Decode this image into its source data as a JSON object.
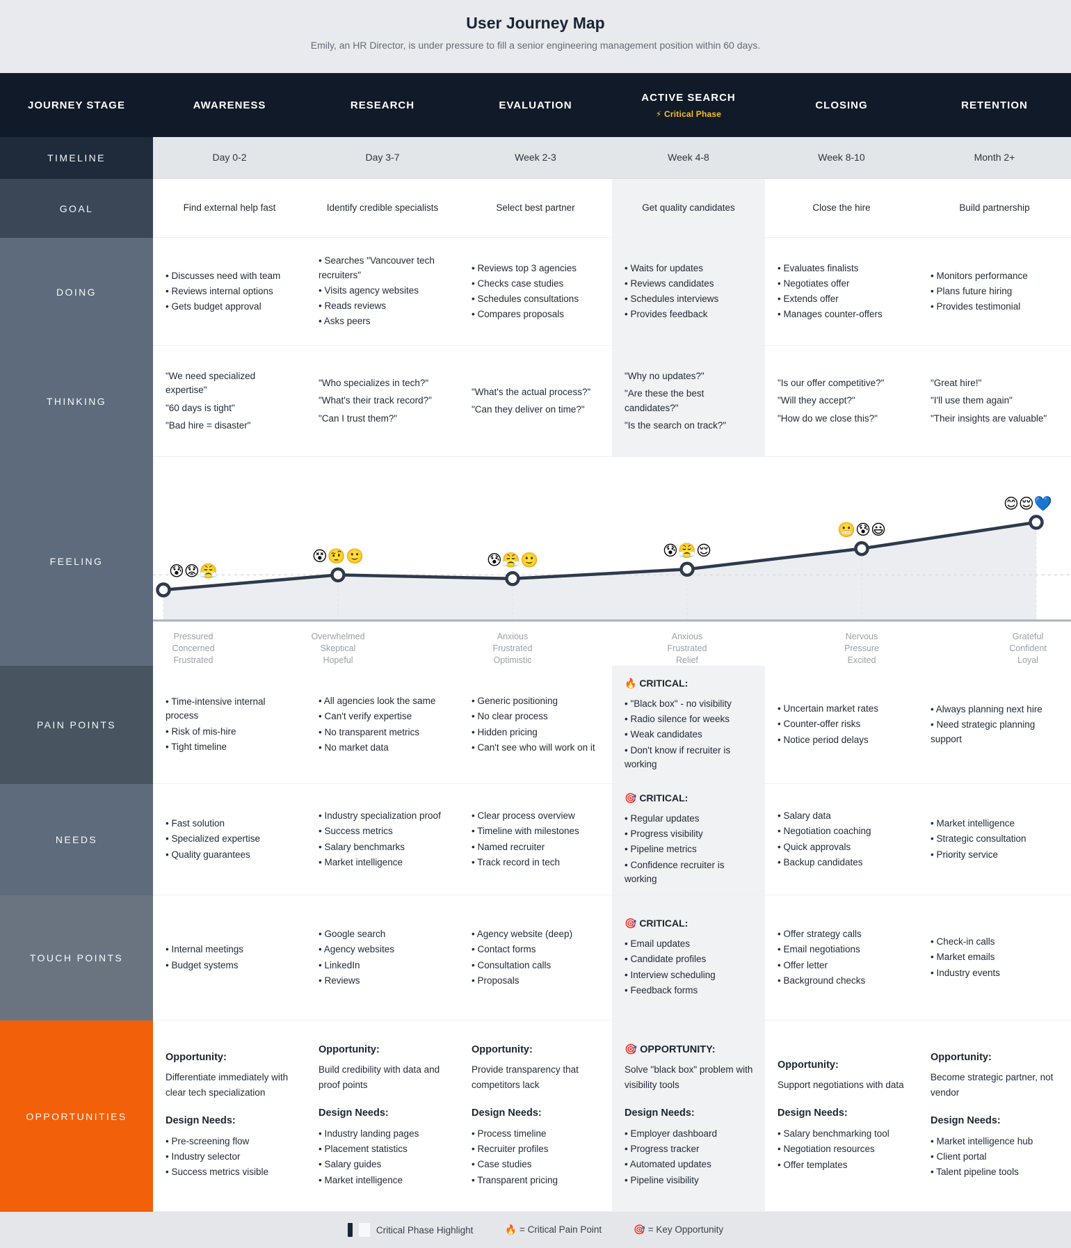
{
  "title": "User Journey Map",
  "subtitle": "Emily, an HR Director, is under pressure to fill a senior engineering management position within 60 days.",
  "row_labels": {
    "stage": "JOURNEY STAGE",
    "timeline": "TIMELINE",
    "goal": "GOAL",
    "doing": "DOING",
    "thinking": "THINKING",
    "feeling": "FEELING",
    "pain": "PAIN POINTS",
    "needs": "NEEDS",
    "touch": "TOUCH POINTS",
    "opportunities": "OPPORTUNITIES"
  },
  "colors": {
    "header_bg": "#111a28",
    "timeline_label_bg": "#1f2b3b",
    "goal_label_bg": "#3b4757",
    "row_label_bg": "#5e6b7c",
    "pain_label_bg": "#48545f",
    "touch_label_bg": "#6a7480",
    "opportunities_bg": "#f2600a",
    "highlight_bg": "#f1f2f4",
    "critical_amber": "#fbbf24",
    "curve_color": "#2e3a4c",
    "page_band_bg": "#e8eaed"
  },
  "stages": [
    {
      "name": "AWARENESS",
      "timeline": "Day 0-2",
      "goal": "Find external help fast",
      "doing": [
        "Discusses need with team",
        "Reviews internal options",
        "Gets budget approval"
      ],
      "thinking": [
        "\"We need specialized expertise\"",
        "\"60 days is tight\"",
        "\"Bad hire = disaster\""
      ],
      "pain": [
        "Time-intensive internal process",
        "Risk of mis-hire",
        "Tight timeline"
      ],
      "needs": [
        "Fast solution",
        "Specialized expertise",
        "Quality guarantees"
      ],
      "touch": [
        "Internal meetings",
        "Budget systems"
      ],
      "opportunity": {
        "label": "Opportunity:",
        "text": "Differentiate immediately with clear tech specialization",
        "design_label": "Design Needs:",
        "design": [
          "Pre-screening flow",
          "Industry selector",
          "Success metrics visible"
        ]
      }
    },
    {
      "name": "RESEARCH",
      "timeline": "Day 3-7",
      "goal": "Identify credible specialists",
      "doing": [
        "Searches \"Vancouver tech recruiters\"",
        "Visits agency websites",
        "Reads reviews",
        "Asks peers"
      ],
      "thinking": [
        "\"Who specializes in tech?\"",
        "\"What's their track record?\"",
        "\"Can I trust them?\""
      ],
      "pain": [
        "All agencies look the same",
        "Can't verify expertise",
        "No transparent metrics",
        "No market data"
      ],
      "needs": [
        "Industry specialization proof",
        "Success metrics",
        "Salary benchmarks",
        "Market intelligence"
      ],
      "touch": [
        "Google search",
        "Agency websites",
        "LinkedIn",
        "Reviews"
      ],
      "opportunity": {
        "label": "Opportunity:",
        "text": "Build credibility with data and proof points",
        "design_label": "Design Needs:",
        "design": [
          "Industry landing pages",
          "Placement statistics",
          "Salary guides",
          "Market intelligence"
        ]
      }
    },
    {
      "name": "EVALUATION",
      "timeline": "Week 2-3",
      "goal": "Select best partner",
      "doing": [
        "Reviews top 3 agencies",
        "Checks case studies",
        "Schedules consultations",
        "Compares proposals"
      ],
      "thinking": [
        "\"What's the actual process?\"",
        "\"Can they deliver on time?\""
      ],
      "pain": [
        "Generic positioning",
        "No clear process",
        "Hidden pricing",
        "Can't see who will work on it"
      ],
      "needs": [
        "Clear process overview",
        "Timeline with milestones",
        "Named recruiter",
        "Track record in tech"
      ],
      "touch": [
        "Agency website (deep)",
        "Contact forms",
        "Consultation calls",
        "Proposals"
      ],
      "opportunity": {
        "label": "Opportunity:",
        "text": "Provide transparency that competitors lack",
        "design_label": "Design Needs:",
        "design": [
          "Process timeline",
          "Recruiter profiles",
          "Case studies",
          "Transparent pricing"
        ]
      }
    },
    {
      "name": "ACTIVE SEARCH",
      "badge": "⚡ Critical Phase",
      "timeline": "Week 4-8",
      "goal": "Get quality candidates",
      "doing": [
        "Waits for updates",
        "Reviews candidates",
        "Schedules interviews",
        "Provides feedback"
      ],
      "thinking": [
        "\"Why no updates?\"",
        "\"Are these the best candidates?\"",
        "\"Is the search on track?\""
      ],
      "pain_critical": "🔥 CRITICAL:",
      "pain": [
        "\"Black box\" - no visibility",
        "Radio silence for weeks",
        "Weak candidates",
        "Don't know if recruiter is working"
      ],
      "needs_critical": "🎯 CRITICAL:",
      "needs": [
        "Regular updates",
        "Progress visibility",
        "Pipeline metrics",
        "Confidence recruiter is working"
      ],
      "touch_critical": "🎯 CRITICAL:",
      "touch": [
        "Email updates",
        "Candidate profiles",
        "Interview scheduling",
        "Feedback forms"
      ],
      "opportunity": {
        "label": "🎯 OPPORTUNITY:",
        "text": "Solve \"black box\" problem with visibility tools",
        "design_label": "Design Needs:",
        "design": [
          "Employer dashboard",
          "Progress tracker",
          "Automated updates",
          "Pipeline visibility"
        ]
      }
    },
    {
      "name": "CLOSING",
      "timeline": "Week 8-10",
      "goal": "Close the hire",
      "doing": [
        "Evaluates finalists",
        "Negotiates offer",
        "Extends offer",
        "Manages counter-offers"
      ],
      "thinking": [
        "\"Is our offer competitive?\"",
        "\"Will they accept?\"",
        "\"How do we close this?\""
      ],
      "pain": [
        "Uncertain market rates",
        "Counter-offer risks",
        "Notice period delays"
      ],
      "needs": [
        "Salary data",
        "Negotiation coaching",
        "Quick approvals",
        "Backup candidates"
      ],
      "touch": [
        "Offer strategy calls",
        "Email negotiations",
        "Offer letter",
        "Background checks"
      ],
      "opportunity": {
        "label": "Opportunity:",
        "text": "Support negotiations with data",
        "design_label": "Design Needs:",
        "design": [
          "Salary benchmarking tool",
          "Negotiation resources",
          "Offer templates"
        ]
      }
    },
    {
      "name": "RETENTION",
      "timeline": "Month 2+",
      "goal": "Build partnership",
      "doing": [
        "Monitors performance",
        "Plans future hiring",
        "Provides testimonial"
      ],
      "thinking": [
        "\"Great hire!\"",
        "\"I'll use them again\"",
        "\"Their insights are valuable\""
      ],
      "pain": [
        "Always planning next hire",
        "Need strategic planning support"
      ],
      "needs": [
        "Market intelligence",
        "Strategic consultation",
        "Priority service"
      ],
      "touch": [
        "Check-in calls",
        "Market emails",
        "Industry events"
      ],
      "opportunity": {
        "label": "Opportunity:",
        "text": "Become strategic partner, not vendor",
        "design_label": "Design Needs:",
        "design": [
          "Market intelligence hub",
          "Client portal",
          "Talent pipeline tools"
        ]
      }
    }
  ],
  "chart_data": {
    "type": "line",
    "title": "Feeling curve across journey stages",
    "categories": [
      "Awareness",
      "Research",
      "Evaluation",
      "Active Search",
      "Closing",
      "Retention"
    ],
    "values": [
      2.0,
      2.8,
      2.6,
      3.1,
      4.2,
      5.6
    ],
    "ylim": [
      0,
      7
    ],
    "baseline_value": 2.8,
    "grid": "dashed baseline + dashed verticals, gray area fill under line",
    "emojis": [
      "😰😟😤",
      "😵🤨🙂",
      "😰😤🙂",
      "😰😤😌",
      "😬😰😃",
      "😊😌💙"
    ],
    "point_labels": [
      [
        "Pressured",
        "Concerned",
        "Frustrated"
      ],
      [
        "Overwhelmed",
        "Skeptical",
        "Hopeful"
      ],
      [
        "Anxious",
        "Frustrated",
        "Optimistic"
      ],
      [
        "Anxious",
        "Frustrated",
        "Relief"
      ],
      [
        "Nervous",
        "Pressure",
        "Excited"
      ],
      [
        "Grateful",
        "Confident",
        "Loyal"
      ]
    ]
  },
  "legend": {
    "highlight_label": "Critical Phase Highlight",
    "pain_item": "🔥 = Critical Pain Point",
    "opportunity_item": "🎯 = Key Opportunity"
  }
}
